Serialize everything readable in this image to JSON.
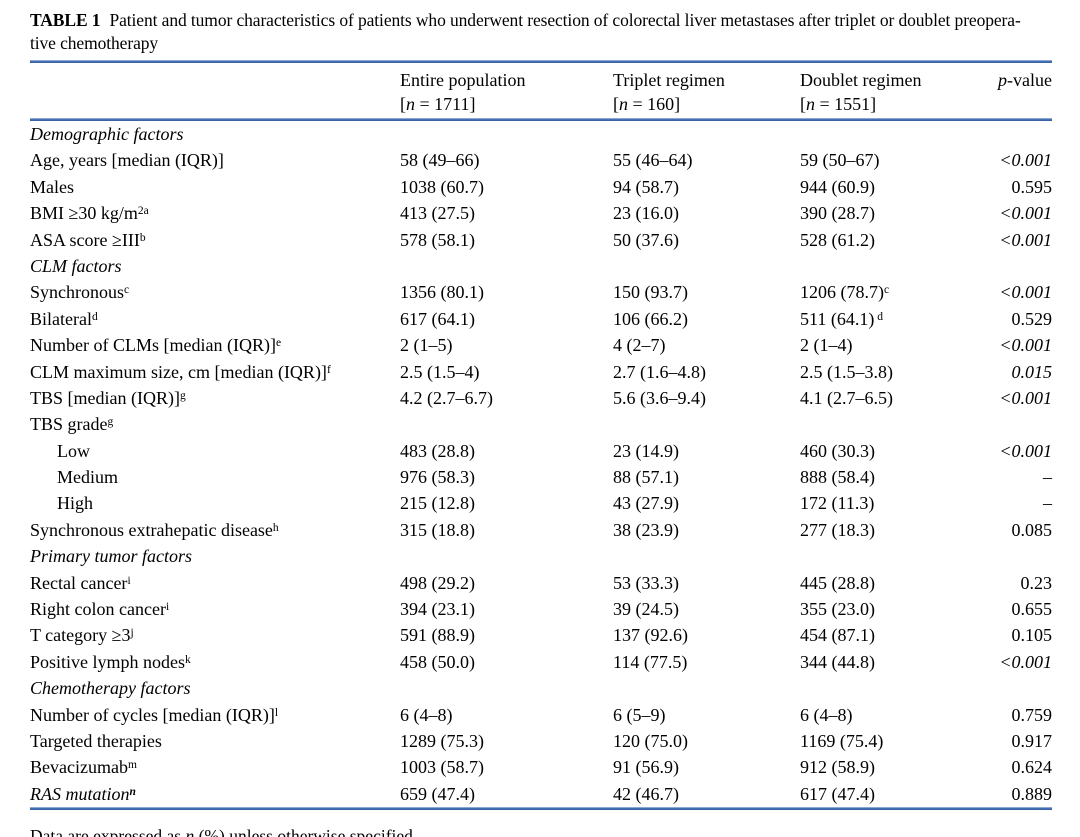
{
  "colors": {
    "rule_blue": "#3c68ac",
    "text": "#000000",
    "background": "#ffffff"
  },
  "caption": {
    "label": "TABLE 1",
    "line1": "Patient and tumor characteristics of patients who underwent resection of colorectal liver metastases after triplet or doublet preopera-",
    "line2": "tive chemotherapy"
  },
  "header": {
    "cols": [
      {
        "name": "Entire population",
        "n_line": "[n = 1711]"
      },
      {
        "name": "Triplet regimen",
        "n_line": "[n = 160]"
      },
      {
        "name": "Doublet regimen",
        "n_line": "[n = 1551]"
      }
    ],
    "p_header": "p-value"
  },
  "chart_data": {
    "type": "table",
    "title": "TABLE 1 Patient and tumor characteristics of patients who underwent resection of colorectal liver metastases after triplet or doublet preoperative chemotherapy",
    "columns": [
      "",
      "Entire population [n = 1711]",
      "Triplet regimen [n = 160]",
      "Doublet regimen [n = 1551]",
      "p-value"
    ]
  },
  "rows": [
    {
      "label": "Demographic factors",
      "section": true,
      "v1": "",
      "v2": "",
      "v3": "",
      "p": ""
    },
    {
      "label": "Age, years [median (IQR)]",
      "v1": "58 (49–66)",
      "v2": "55 (46–64)",
      "v3": "59 (50–67)",
      "p": "<0.001",
      "p_italic": true
    },
    {
      "label": "Males",
      "v1": "1038 (60.7)",
      "v2": "94 (58.7)",
      "v3": "944 (60.9)",
      "p": "0.595"
    },
    {
      "label": "BMI ≥30 kg/m",
      "sup": "2a",
      "v1": "413 (27.5)",
      "v2": "23 (16.0)",
      "v3": "390 (28.7)",
      "p": "<0.001",
      "p_italic": true
    },
    {
      "label": "ASA score ≥III",
      "sup": "b",
      "v1": "578 (58.1)",
      "v2": "50 (37.6)",
      "v3": "528 (61.2)",
      "p": "<0.001",
      "p_italic": true
    },
    {
      "label": "CLM factors",
      "section": true,
      "v1": "",
      "v2": "",
      "v3": "",
      "p": ""
    },
    {
      "label": "Synchronous",
      "sup": "c",
      "v1": "1356 (80.1)",
      "v2": "150 (93.7)",
      "v3": "1206 (78.7)",
      "v3_sup": "c",
      "p": "<0.001",
      "p_italic": true
    },
    {
      "label": "Bilateral",
      "sup": "d",
      "v1": "617 (64.1)",
      "v2": "106 (66.2)",
      "v3": "511 (64.1)",
      "v3_sup": " d",
      "p": "0.529"
    },
    {
      "label": "Number of CLMs [median (IQR)]",
      "sup": "e",
      "v1": "2 (1–5)",
      "v2": "4 (2–7)",
      "v3": "2 (1–4)",
      "p": "<0.001",
      "p_italic": true
    },
    {
      "label": "CLM maximum size, cm [median (IQR)]",
      "sup": "f",
      "v1": "2.5 (1.5–4)",
      "v2": "2.7 (1.6–4.8)",
      "v3": "2.5 (1.5–3.8)",
      "p": "0.015",
      "p_italic": true
    },
    {
      "label": "TBS [median (IQR)]",
      "sup": "g",
      "v1": "4.2 (2.7–6.7)",
      "v2": "5.6 (3.6–9.4)",
      "v3": "4.1 (2.7–6.5)",
      "p": "<0.001",
      "p_italic": true
    },
    {
      "label": "TBS grade",
      "sup": "g",
      "v1": "",
      "v2": "",
      "v3": "",
      "p": ""
    },
    {
      "label": "Low",
      "indent": true,
      "v1": "483 (28.8)",
      "v2": "23 (14.9)",
      "v3": "460 (30.3)",
      "p": "<0.001",
      "p_italic": true
    },
    {
      "label": "Medium",
      "indent": true,
      "v1": "976 (58.3)",
      "v2": "88 (57.1)",
      "v3": "888 (58.4)",
      "p": "–"
    },
    {
      "label": "High",
      "indent": true,
      "v1": "215 (12.8)",
      "v2": "43 (27.9)",
      "v3": "172 (11.3)",
      "p": "–"
    },
    {
      "label": "Synchronous extrahepatic disease",
      "sup": "h",
      "v1": "315 (18.8)",
      "v2": "38 (23.9)",
      "v3": "277 (18.3)",
      "p": "0.085"
    },
    {
      "label": "Primary tumor factors",
      "section": true,
      "v1": "",
      "v2": "",
      "v3": "",
      "p": ""
    },
    {
      "label": "Rectal cancer",
      "sup": "i",
      "v1": "498 (29.2)",
      "v2": "53 (33.3)",
      "v3": "445 (28.8)",
      "p": "0.23"
    },
    {
      "label": "Right colon cancer",
      "sup": "i",
      "v1": "394 (23.1)",
      "v2": "39 (24.5)",
      "v3": "355 (23.0)",
      "p": "0.655"
    },
    {
      "label": "T category ≥3",
      "sup": "j",
      "v1": "591 (88.9)",
      "v2": "137 (92.6)",
      "v3": "454 (87.1)",
      "p": "0.105"
    },
    {
      "label": "Positive lymph nodes",
      "sup": "k",
      "v1": "458 (50.0)",
      "v2": "114 (77.5)",
      "v3": "344 (44.8)",
      "p": "<0.001",
      "p_italic": true
    },
    {
      "label": "Chemotherapy factors",
      "section": true,
      "v1": "",
      "v2": "",
      "v3": "",
      "p": ""
    },
    {
      "label": "Number of cycles [median (IQR)]",
      "sup": "l",
      "v1": "6 (4–8)",
      "v2": "6 (5–9)",
      "v3": "6 (4–8)",
      "p": "0.759"
    },
    {
      "label": "Targeted therapies",
      "v1": "1289 (75.3)",
      "v2": "120 (75.0)",
      "v3": "1169 (75.4)",
      "p": "0.917"
    },
    {
      "label": "Bevacizumab",
      "sup": "m",
      "v1": "1003 (58.7)",
      "v2": "91 (56.9)",
      "v3": "912 (58.9)",
      "p": "0.624"
    },
    {
      "label": "RAS mutation",
      "label_italic": true,
      "sup": "n",
      "sup_bold": true,
      "v1": "659 (47.4)",
      "v2": "42 (46.7)",
      "v3": "617 (47.4)",
      "p": "0.889"
    }
  ],
  "footnote": {
    "parts": [
      "Data are expressed as ",
      {
        "i": "n"
      },
      " (%) unless otherwise specified"
    ]
  }
}
